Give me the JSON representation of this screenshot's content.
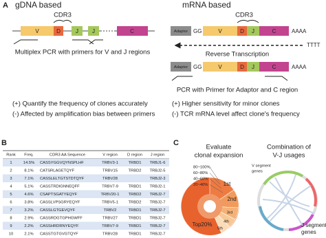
{
  "panel_a": {
    "label": "A",
    "left": {
      "title": "gDNA based",
      "cdr3": "CDR3",
      "segments": [
        "V",
        "D",
        "J",
        "J",
        "C"
      ],
      "caption": "Multiplex PCR with primers for V and J regions"
    },
    "right": {
      "title": "mRNA based",
      "cdr3": "CDR3",
      "adaptor": "Adaptor",
      "gg": "GG",
      "segments": [
        "V",
        "D",
        "J",
        "C"
      ],
      "polya": "AAAA",
      "rt": "Reverse Transcription",
      "polyt": "TTTT",
      "caption": "PCR with Primer for Adaptor and C region"
    },
    "notes_left": [
      "(+) Quantify the frequency of clones accurately",
      "(-) Affected by amplification bias between primers"
    ],
    "notes_right": [
      "(+) Higher sensitivity for minor clones",
      "(-) TCR mRNA level affect clone's frequency"
    ]
  },
  "panel_b": {
    "label": "B",
    "table": {
      "header": [
        "Rank",
        "Freq.",
        "CDR3 AA Sequence",
        "V region",
        "D region",
        "J region"
      ],
      "rows": [
        [
          "1",
          "14.5%",
          "CASSYGGVQYNSPLHF",
          "TRBV3-1",
          "TRBD1",
          "TRBJ1-6"
        ],
        [
          "2",
          "8.1%",
          "CATSRLAGETQYF",
          "TRBV15",
          "TRBD2",
          "TRBJ2-5"
        ],
        [
          "3",
          "7.1%",
          "CASSLELTGTSTDTQYF",
          "TRBV28",
          null,
          "TRBJ2-3"
        ],
        [
          "4",
          "5.1%",
          "CASSTRDIGNNEQFF",
          "TRBV7-9",
          "TRBD1",
          "TRBJ2-1"
        ],
        [
          "5",
          "4.6%",
          "CSAPTSGATYEQYF",
          "TRBV20-1",
          "TRBD2",
          "TRBJ2-7"
        ],
        [
          "6",
          "3.8%",
          "CASSLVPSGRYEQYF",
          "TRBV5-1",
          "TRBD2",
          "TRBJ2-7"
        ],
        [
          "7",
          "3.2%",
          "CASSLGTGEVQYF",
          "TRBV2",
          "TRBD1",
          "TRBJ2-7"
        ],
        [
          "8",
          "2.9%",
          "CASSRDGTGPHGWFF",
          "TRBV27",
          "TRBD1",
          "TRBJ2-7"
        ],
        [
          "9",
          "2.2%",
          "CASSHRDRNYEQYF",
          "TRBV7-9",
          "TRBD1",
          "TRBJ2-7"
        ],
        [
          "10",
          "2.1%",
          "CASSTGTGVGTQYF",
          "TRBV28",
          "TRBD1",
          "TRBJ2-7"
        ]
      ]
    }
  },
  "panel_c": {
    "label": "C",
    "left": {
      "title": [
        "Evaluate",
        "clonal expansion"
      ],
      "legend": [
        "80~100%",
        "60~80%",
        "40~60%",
        "20~40%"
      ],
      "slices": [
        "1st",
        "2nd",
        "3rd",
        "4th",
        "5th"
      ],
      "center": "Top20%"
    },
    "right": {
      "title": [
        "Combination of",
        "V-J usages"
      ],
      "v_label": [
        "V segment",
        "genes"
      ],
      "j_label": [
        "J segment",
        "genes"
      ]
    }
  }
}
